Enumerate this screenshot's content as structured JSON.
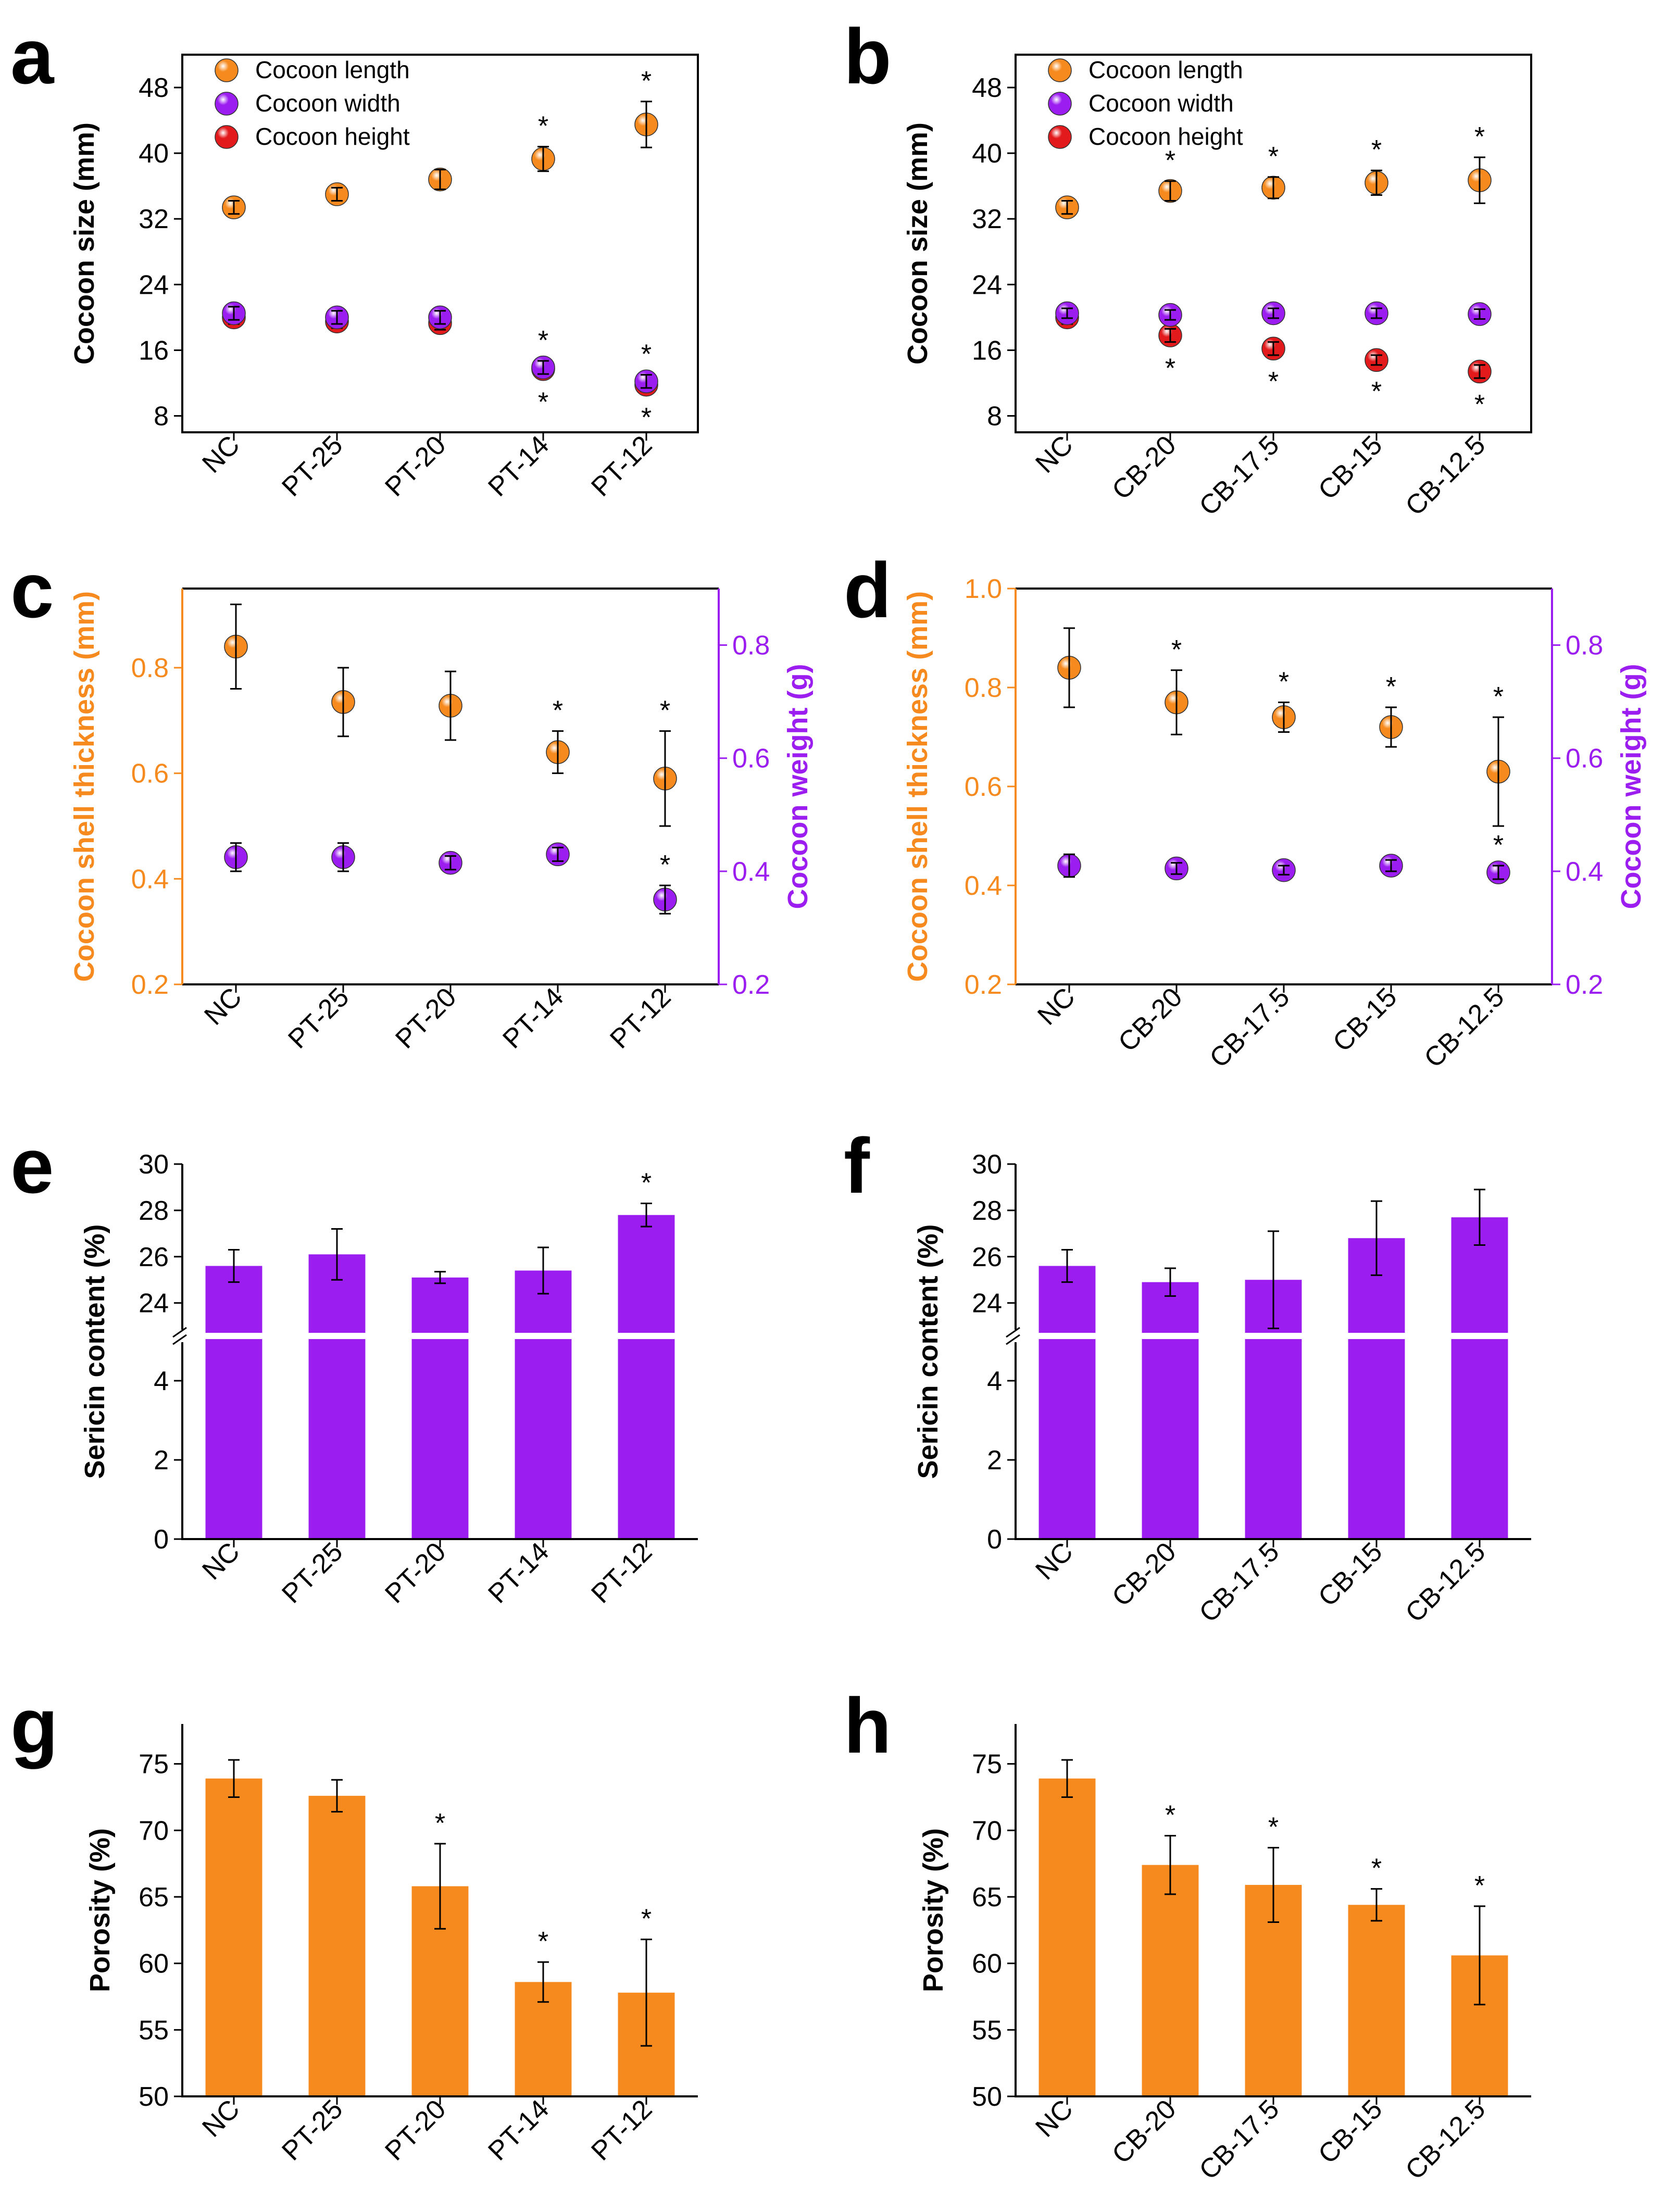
{
  "colors": {
    "orange": "#F68A1E",
    "purple": "#9B1DF0",
    "red": "#E31A1C",
    "axis": "#000000",
    "orange_axis": "#F68A1E",
    "purple_axis": "#9B1DF0"
  },
  "chart_data": [
    {
      "id": "a",
      "letter": "a",
      "type": "scatter",
      "categories": [
        "NC",
        "PT-25",
        "PT-20",
        "PT-14",
        "PT-12"
      ],
      "ylabel": "Cocoon size (mm)",
      "ylim": [
        6,
        52
      ],
      "yticks": [
        8,
        16,
        24,
        32,
        40,
        48
      ],
      "legend": [
        "Cocoon length",
        "Cocoon width",
        "Cocoon height"
      ],
      "series": [
        {
          "name": "Cocoon length",
          "color": "orange",
          "values": [
            33.4,
            35.0,
            36.8,
            39.3,
            43.5
          ],
          "err": [
            0.8,
            0.8,
            1.2,
            1.5,
            2.8
          ],
          "stars": [
            false,
            false,
            false,
            true,
            true
          ],
          "star_pos": "above"
        },
        {
          "name": "Cocoon width",
          "color": "purple",
          "values": [
            20.5,
            20.0,
            20.0,
            13.9,
            12.2
          ],
          "err": [
            0.8,
            0.8,
            0.8,
            0.8,
            0.8
          ],
          "stars": [
            false,
            false,
            false,
            true,
            true
          ],
          "star_pos": "above"
        },
        {
          "name": "Cocoon height",
          "color": "red",
          "values": [
            20.0,
            19.5,
            19.3,
            13.7,
            11.8
          ],
          "err": [
            0.8,
            0.8,
            0.8,
            0.8,
            0.8
          ],
          "stars": [
            false,
            false,
            false,
            true,
            true
          ],
          "star_pos": "below"
        }
      ]
    },
    {
      "id": "b",
      "letter": "b",
      "type": "scatter",
      "categories": [
        "NC",
        "CB-20",
        "CB-17.5",
        "CB-15",
        "CB-12.5"
      ],
      "ylabel": "Cocoon size (mm)",
      "ylim": [
        6,
        52
      ],
      "yticks": [
        8,
        16,
        24,
        32,
        40,
        48
      ],
      "legend": [
        "Cocoon length",
        "Cocoon width",
        "Cocoon height"
      ],
      "series": [
        {
          "name": "Cocoon length",
          "color": "orange",
          "values": [
            33.4,
            35.4,
            35.8,
            36.4,
            36.7
          ],
          "err": [
            0.8,
            1.2,
            1.3,
            1.5,
            2.8
          ],
          "stars": [
            false,
            true,
            true,
            true,
            true
          ],
          "star_pos": "above"
        },
        {
          "name": "Cocoon width",
          "color": "purple",
          "values": [
            20.5,
            20.3,
            20.5,
            20.5,
            20.4
          ],
          "err": [
            0.6,
            0.6,
            0.6,
            0.6,
            0.6
          ],
          "stars": [
            false,
            false,
            false,
            false,
            false
          ],
          "star_pos": "above"
        },
        {
          "name": "Cocoon height",
          "color": "red",
          "values": [
            20.0,
            17.8,
            16.2,
            14.8,
            13.4
          ],
          "err": [
            0.8,
            0.8,
            0.8,
            0.6,
            0.8
          ],
          "stars": [
            false,
            true,
            true,
            true,
            true
          ],
          "star_pos": "below"
        }
      ]
    },
    {
      "id": "c",
      "letter": "c",
      "type": "scatter-dual-axis",
      "categories": [
        "NC",
        "PT-25",
        "PT-20",
        "PT-14",
        "PT-12"
      ],
      "ylabel": "Cocoon shell thickness (mm)",
      "ylim": [
        0.2,
        0.95
      ],
      "yticks": [
        "0.2",
        "0.4",
        "0.6",
        "0.8"
      ],
      "y2label": "Cocoon weight (g)",
      "y2lim": [
        0.2,
        0.9
      ],
      "y2ticks": [
        "0.2",
        "0.4",
        "0.6",
        "0.8"
      ],
      "series": [
        {
          "name": "Cocoon shell thickness",
          "axis": "left",
          "color": "orange",
          "values": [
            0.84,
            0.735,
            0.728,
            0.64,
            0.59
          ],
          "err": [
            0.08,
            0.065,
            0.065,
            0.04,
            0.09
          ],
          "stars": [
            false,
            false,
            false,
            true,
            true
          ]
        },
        {
          "name": "Cocoon weight",
          "axis": "right",
          "color": "purple",
          "values": [
            0.425,
            0.425,
            0.415,
            0.43,
            0.35
          ],
          "err": [
            0.025,
            0.025,
            0.012,
            0.012,
            0.025
          ],
          "stars": [
            false,
            false,
            false,
            false,
            true
          ]
        }
      ]
    },
    {
      "id": "d",
      "letter": "d",
      "type": "scatter-dual-axis",
      "categories": [
        "NC",
        "CB-20",
        "CB-17.5",
        "CB-15",
        "CB-12.5"
      ],
      "ylabel": "Cocoon shell thickness (mm)",
      "ylim": [
        0.2,
        1.0
      ],
      "yticks": [
        "0.2",
        "0.4",
        "0.6",
        "0.8",
        "1.0"
      ],
      "y2label": "Cocoon weight (g)",
      "y2lim": [
        0.2,
        0.9
      ],
      "y2ticks": [
        "0.2",
        "0.4",
        "0.6",
        "0.8"
      ],
      "series": [
        {
          "name": "Cocoon shell thickness",
          "axis": "left",
          "color": "orange",
          "values": [
            0.84,
            0.77,
            0.74,
            0.72,
            0.63
          ],
          "err": [
            0.08,
            0.065,
            0.03,
            0.04,
            0.11
          ],
          "stars": [
            false,
            true,
            true,
            true,
            true
          ]
        },
        {
          "name": "Cocoon weight",
          "axis": "right",
          "color": "purple",
          "values": [
            0.41,
            0.405,
            0.402,
            0.41,
            0.398
          ],
          "err": [
            0.02,
            0.01,
            0.008,
            0.01,
            0.012
          ],
          "stars": [
            false,
            false,
            false,
            false,
            true
          ]
        }
      ]
    },
    {
      "id": "e",
      "letter": "e",
      "type": "bar-broken-axis",
      "categories": [
        "NC",
        "PT-25",
        "PT-20",
        "PT-14",
        "PT-12"
      ],
      "ylabel": "Sericin content (%)",
      "lower_ylim": [
        0,
        5
      ],
      "lower_yticks": [
        0,
        2,
        4
      ],
      "upper_ylim": [
        22.8,
        30
      ],
      "upper_yticks": [
        24,
        26,
        28,
        30
      ],
      "color": "purple",
      "values": [
        25.6,
        26.1,
        25.1,
        25.4,
        27.8
      ],
      "err": [
        0.7,
        1.1,
        0.25,
        1.0,
        0.5
      ],
      "stars": [
        false,
        false,
        false,
        false,
        true
      ]
    },
    {
      "id": "f",
      "letter": "f",
      "type": "bar-broken-axis",
      "categories": [
        "NC",
        "CB-20",
        "CB-17.5",
        "CB-15",
        "CB-12.5"
      ],
      "ylabel": "Sericin content (%)",
      "lower_ylim": [
        0,
        5
      ],
      "lower_yticks": [
        0,
        2,
        4
      ],
      "upper_ylim": [
        22.8,
        30
      ],
      "upper_yticks": [
        24,
        26,
        28,
        30
      ],
      "color": "purple",
      "values": [
        25.6,
        24.9,
        25.0,
        26.8,
        27.7
      ],
      "err": [
        0.7,
        0.6,
        2.1,
        1.6,
        1.2
      ],
      "stars": [
        false,
        false,
        false,
        false,
        false
      ]
    },
    {
      "id": "g",
      "letter": "g",
      "type": "bar",
      "categories": [
        "NC",
        "PT-25",
        "PT-20",
        "PT-14",
        "PT-12"
      ],
      "ylabel": "Porosity (%)",
      "ylim": [
        50,
        78
      ],
      "yticks": [
        50,
        55,
        60,
        65,
        70,
        75
      ],
      "color": "orange",
      "values": [
        73.9,
        72.6,
        65.8,
        58.6,
        57.8
      ],
      "err": [
        1.4,
        1.2,
        3.2,
        1.5,
        4.0
      ],
      "stars": [
        false,
        false,
        true,
        true,
        true
      ]
    },
    {
      "id": "h",
      "letter": "h",
      "type": "bar",
      "categories": [
        "NC",
        "CB-20",
        "CB-17.5",
        "CB-15",
        "CB-12.5"
      ],
      "ylabel": "Porosity (%)",
      "ylim": [
        50,
        78
      ],
      "yticks": [
        50,
        55,
        60,
        65,
        70,
        75
      ],
      "color": "orange",
      "values": [
        73.9,
        67.4,
        65.9,
        64.4,
        60.6
      ],
      "err": [
        1.4,
        2.2,
        2.8,
        1.2,
        3.7
      ],
      "stars": [
        false,
        true,
        true,
        true,
        true
      ]
    }
  ]
}
